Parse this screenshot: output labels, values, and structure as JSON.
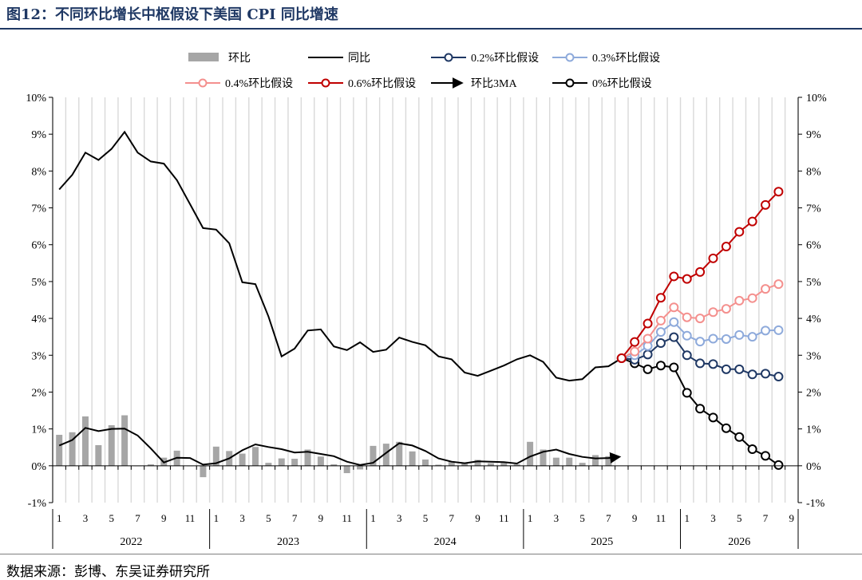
{
  "header": {
    "title": "图12：不同环比增长中枢假设下美国 CPI 同比增速"
  },
  "footer": {
    "source": "数据来源：彭博、东吴证券研究所"
  },
  "colors": {
    "mom_bar": "#a6a6a6",
    "yoy": "#000000",
    "s02": "#1f3864",
    "s03": "#8eaadb",
    "s04": "#f4908e",
    "s06": "#c00000",
    "s00": "#000000",
    "ma3": "#000000"
  },
  "chart_data": {
    "type": "line",
    "ylim": [
      -1,
      10
    ],
    "yticks": [
      "-1%",
      "0%",
      "1%",
      "2%",
      "3%",
      "4%",
      "5%",
      "6%",
      "7%",
      "8%",
      "9%",
      "10%"
    ],
    "month_ticks": [
      "1",
      "3",
      "5",
      "7",
      "9",
      "11",
      "1",
      "3",
      "5",
      "7",
      "9",
      "11",
      "1",
      "3",
      "5",
      "7",
      "9",
      "11",
      "1",
      "3",
      "5",
      "7",
      "9",
      "11",
      "1",
      "3",
      "5",
      "7",
      "9"
    ],
    "years": [
      "2022",
      "2023",
      "2024",
      "2025",
      "2026"
    ],
    "legend": {
      "mom": "环比",
      "yoy": "同比",
      "s02": "0.2%环比假设",
      "s03": "0.3%环比假设",
      "s04": "0.4%环比假设",
      "s06": "0.6%环比假设",
      "ma3": "环比3MA",
      "s00": "0%环比假设"
    },
    "mom": [
      0.84,
      0.91,
      1.34,
      0.56,
      1.1,
      1.37,
      0.0,
      0.04,
      0.22,
      0.41,
      0.0,
      -0.31,
      0.52,
      0.4,
      0.33,
      0.51,
      0.08,
      0.2,
      0.19,
      0.44,
      0.25,
      0.04,
      -0.2,
      -0.1,
      0.54,
      0.6,
      0.65,
      0.39,
      0.17,
      0.03,
      0.12,
      0.07,
      0.16,
      0.07,
      0.08,
      0.04,
      0.65,
      0.44,
      0.22,
      0.22,
      0.08,
      0.29,
      0.26
    ],
    "yoy": [
      7.5,
      7.9,
      8.5,
      8.3,
      8.6,
      9.06,
      8.5,
      8.26,
      8.2,
      7.75,
      7.1,
      6.45,
      6.41,
      6.04,
      4.98,
      4.93,
      4.05,
      2.97,
      3.18,
      3.67,
      3.7,
      3.24,
      3.14,
      3.35,
      3.09,
      3.15,
      3.48,
      3.36,
      3.27,
      2.97,
      2.89,
      2.53,
      2.44,
      2.58,
      2.72,
      2.89,
      3.0,
      2.82,
      2.39,
      2.31,
      2.35,
      2.67,
      2.7,
      2.92
    ],
    "ma3": [
      0.55,
      0.7,
      1.03,
      0.94,
      1.0,
      1.01,
      0.82,
      0.47,
      0.09,
      0.22,
      0.21,
      0.03,
      0.07,
      0.2,
      0.42,
      0.58,
      0.51,
      0.45,
      0.36,
      0.38,
      0.32,
      0.26,
      0.11,
      0.02,
      0.08,
      0.35,
      0.61,
      0.55,
      0.4,
      0.2,
      0.11,
      0.07,
      0.12,
      0.11,
      0.1,
      0.06,
      0.25,
      0.38,
      0.44,
      0.32,
      0.24,
      0.2,
      0.21
    ],
    "ma3_arrow_value": 0.24,
    "scenarios": {
      "s00": [
        2.92,
        2.78,
        2.62,
        2.72,
        2.67,
        1.98,
        1.55,
        1.31,
        1.02,
        0.78,
        0.45,
        0.27,
        0.02
      ],
      "s02": [
        2.92,
        2.88,
        3.02,
        3.33,
        3.49,
        3.0,
        2.78,
        2.76,
        2.62,
        2.62,
        2.48,
        2.5,
        2.42
      ],
      "s03": [
        2.92,
        3.0,
        3.25,
        3.63,
        3.9,
        3.53,
        3.37,
        3.45,
        3.44,
        3.55,
        3.5,
        3.67,
        3.68
      ],
      "s04": [
        2.92,
        3.1,
        3.45,
        3.94,
        4.3,
        4.03,
        4.0,
        4.17,
        4.26,
        4.48,
        4.55,
        4.8,
        4.93
      ],
      "s06": [
        2.92,
        3.36,
        3.86,
        4.56,
        5.14,
        5.07,
        5.26,
        5.63,
        5.95,
        6.35,
        6.63,
        7.08,
        7.44
      ]
    }
  }
}
